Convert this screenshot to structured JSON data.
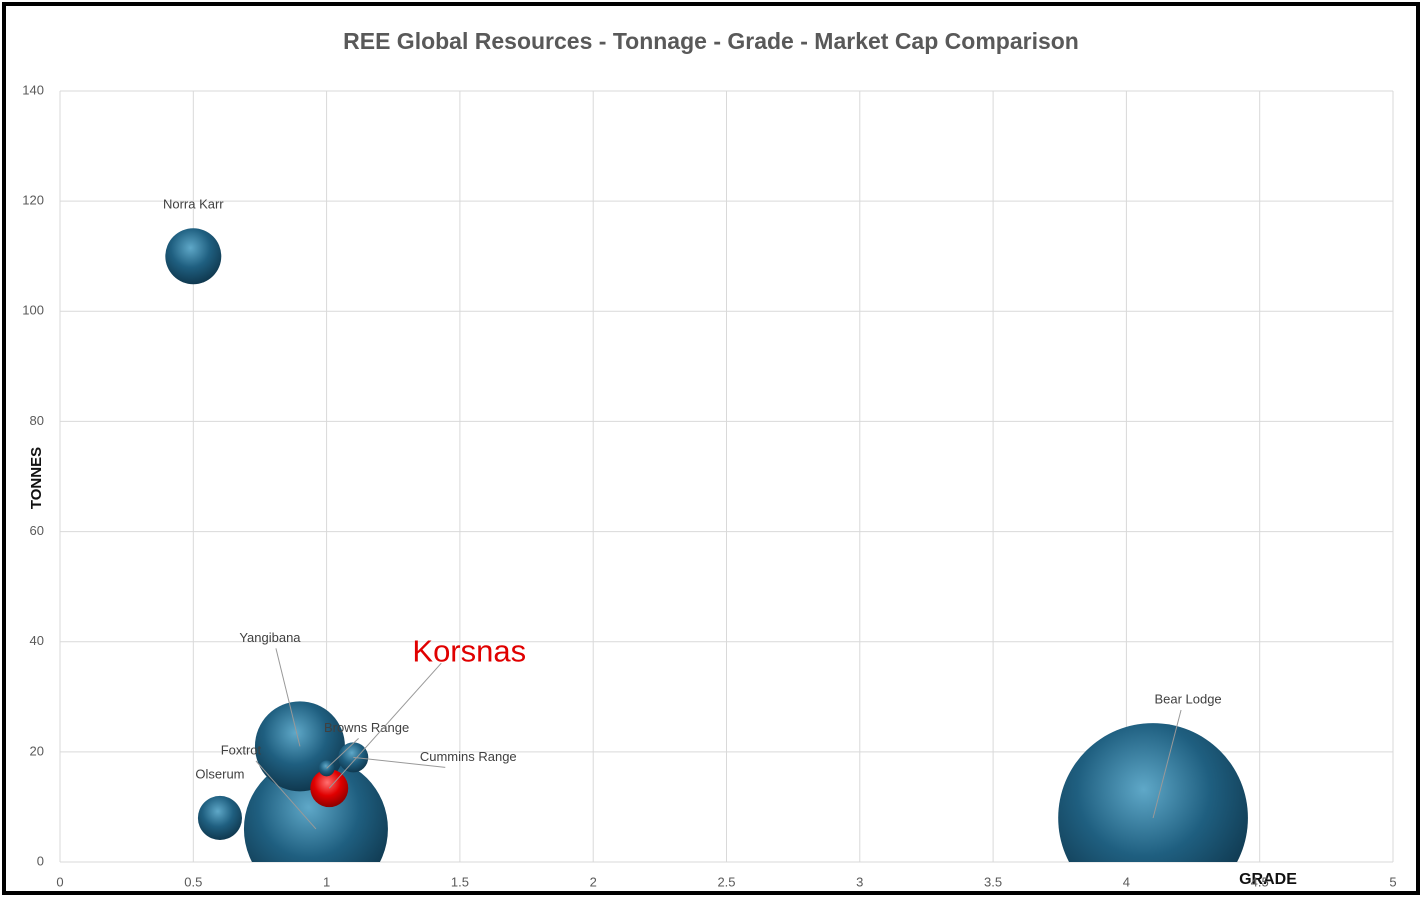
{
  "chart_data": {
    "type": "bubble",
    "title": "REE Global Resources - Tonnage - Grade  - Market Cap Comparison",
    "x_label": "GRADE",
    "y_label": "TONNES",
    "series": [
      {
        "names": [
          "Norra Karr",
          "Olserum",
          "Yangibana",
          "Foxtrot",
          "Browns Range",
          "Cummins Range",
          "Korsnas",
          "Bear Lodge"
        ],
        "x": [
          0.5,
          0.6,
          0.9,
          0.96,
          1.0,
          1.1,
          1.01,
          4.1
        ],
        "values": [
          110,
          8,
          21,
          6,
          17,
          19,
          13.4,
          8
        ],
        "sizes": [
          87,
          54,
          225,
          576,
          7,
          25,
          40,
          1000
        ],
        "colors": [
          "#1f5f80",
          "#1f5f80",
          "#1f5f80",
          "#1f5f80",
          "#1f5f80",
          "#1f5f80",
          "#e00000",
          "#1f5f80"
        ]
      }
    ],
    "xlim": [
      0,
      5
    ],
    "xticks": [
      0,
      0.5,
      1,
      1.5,
      2,
      2.5,
      3,
      3.5,
      4,
      4.5,
      5
    ],
    "ylim": [
      0,
      140
    ],
    "yticks": [
      0,
      20,
      40,
      60,
      80,
      100,
      120,
      140
    ],
    "grid": true
  }
}
